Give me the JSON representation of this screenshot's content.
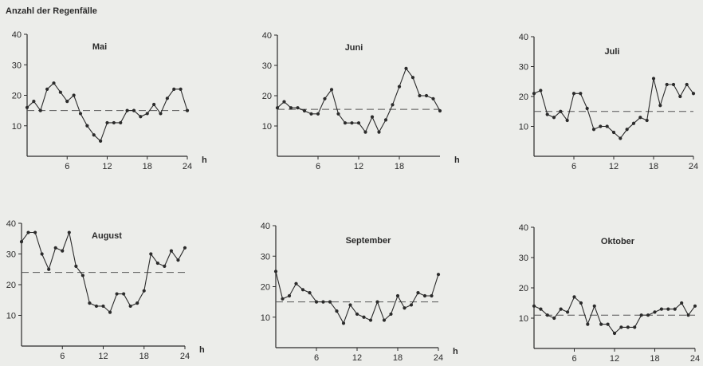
{
  "figure": {
    "y_axis_label": "Anzahl der Regenfälle"
  },
  "chart_data": [
    {
      "type": "line",
      "title": "Mai",
      "xlabel": "h",
      "ylim": [
        0,
        40
      ],
      "yticks": [
        10,
        20,
        30,
        40
      ],
      "xticks": [
        6,
        12,
        18,
        24
      ],
      "x": [
        0,
        1,
        2,
        3,
        4,
        5,
        6,
        7,
        8,
        9,
        10,
        11,
        12,
        13,
        14,
        15,
        16,
        17,
        18,
        19,
        20,
        21,
        22,
        23,
        24
      ],
      "series": [
        {
          "values": [
            16,
            18,
            15,
            22,
            24,
            21,
            18,
            20,
            14,
            10,
            7,
            5,
            11,
            11,
            11,
            15,
            15,
            13,
            14,
            17,
            14,
            19,
            22,
            22,
            15
          ]
        }
      ],
      "mean_line": 15
    },
    {
      "type": "line",
      "title": "Juni",
      "xlabel": "h",
      "ylim": [
        0,
        40
      ],
      "yticks": [
        10,
        20,
        30,
        40
      ],
      "xticks": [
        6,
        12,
        18
      ],
      "x": [
        0,
        1,
        2,
        3,
        4,
        5,
        6,
        7,
        8,
        9,
        10,
        11,
        12,
        13,
        14,
        15,
        16,
        17,
        18,
        19,
        20,
        21,
        22,
        23,
        24
      ],
      "series": [
        {
          "values": [
            16,
            18,
            16,
            16,
            15,
            14,
            14,
            19,
            22,
            14,
            11,
            11,
            11,
            8,
            13,
            8,
            12,
            17,
            23,
            29,
            26,
            20,
            20,
            19,
            15
          ]
        }
      ],
      "mean_line": 15.5
    },
    {
      "type": "line",
      "title": "Juli",
      "xlabel": "h",
      "ylim": [
        0,
        40
      ],
      "yticks": [
        10,
        20,
        30,
        40
      ],
      "xticks": [
        6,
        12,
        18,
        24
      ],
      "x": [
        0,
        1,
        2,
        3,
        4,
        5,
        6,
        7,
        8,
        9,
        10,
        11,
        12,
        13,
        14,
        15,
        16,
        17,
        18,
        19,
        20,
        21,
        22,
        23,
        24
      ],
      "series": [
        {
          "values": [
            21,
            22,
            14,
            13,
            15,
            12,
            21,
            21,
            16,
            9,
            10,
            10,
            8,
            6,
            9,
            11,
            13,
            12,
            26,
            17,
            24,
            24,
            20,
            24,
            21
          ]
        }
      ],
      "mean_line": 15
    },
    {
      "type": "line",
      "title": "August",
      "xlabel": "h",
      "ylim": [
        0,
        40
      ],
      "yticks": [
        10,
        20,
        30,
        40
      ],
      "xticks": [
        6,
        12,
        18,
        24
      ],
      "x": [
        0,
        1,
        2,
        3,
        4,
        5,
        6,
        7,
        8,
        9,
        10,
        11,
        12,
        13,
        14,
        15,
        16,
        17,
        18,
        19,
        20,
        21,
        22,
        23,
        24
      ],
      "series": [
        {
          "values": [
            34,
            37,
            37,
            30,
            25,
            32,
            31,
            37,
            26,
            23,
            14,
            13,
            13,
            11,
            17,
            17,
            13,
            14,
            18,
            30,
            27,
            26,
            31,
            28,
            32
          ]
        }
      ],
      "mean_line": 24
    },
    {
      "type": "line",
      "title": "September",
      "xlabel": "h",
      "ylim": [
        0,
        40
      ],
      "yticks": [
        10,
        20,
        30,
        40
      ],
      "xticks": [
        6,
        12,
        18,
        24
      ],
      "x": [
        0,
        1,
        2,
        3,
        4,
        5,
        6,
        7,
        8,
        9,
        10,
        11,
        12,
        13,
        14,
        15,
        16,
        17,
        18,
        19,
        20,
        21,
        22,
        23,
        24
      ],
      "series": [
        {
          "values": [
            25,
            16,
            17,
            21,
            19,
            18,
            15,
            15,
            15,
            12,
            8,
            14,
            11,
            10,
            9,
            15,
            9,
            11,
            17,
            13,
            14,
            18,
            17,
            17,
            24
          ]
        }
      ],
      "mean_line": 15
    },
    {
      "type": "line",
      "title": "Oktober",
      "xlabel": "h",
      "ylim": [
        0,
        40
      ],
      "yticks": [
        10,
        20,
        30,
        40
      ],
      "xticks": [
        6,
        12,
        18,
        24
      ],
      "x": [
        0,
        1,
        2,
        3,
        4,
        5,
        6,
        7,
        8,
        9,
        10,
        11,
        12,
        13,
        14,
        15,
        16,
        17,
        18,
        19,
        20,
        21,
        22,
        23,
        24
      ],
      "series": [
        {
          "values": [
            14,
            13,
            11,
            10,
            13,
            12,
            17,
            15,
            8,
            14,
            8,
            8,
            5,
            7,
            7,
            7,
            11,
            11,
            12,
            13,
            13,
            13,
            15,
            11,
            14
          ]
        }
      ],
      "mean_line": 11
    }
  ]
}
